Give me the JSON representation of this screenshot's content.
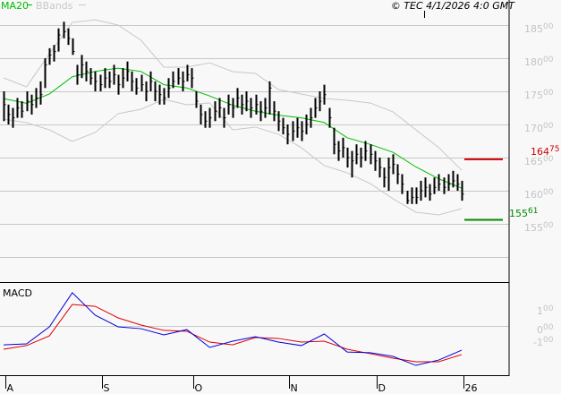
{
  "legend": {
    "ma20": "MA20",
    "bbands": "BBands"
  },
  "copyright": "© TEC 4/1/2026 4:0 GMT",
  "macd_label": "MACD",
  "colors": {
    "bars": "#000000",
    "ma20": "#00bb00",
    "bbands": "#c8c8c8",
    "macd": "#0000dd",
    "signal": "#dd0000",
    "resistance": "#cc0000",
    "support": "#008800",
    "grid": "#c8c8c8",
    "axis_label": "#c4c4c4"
  },
  "chart_data": [
    {
      "type": "ohlc",
      "ylim": [
        15000,
        18700
      ],
      "grid": true,
      "y_ticks": [
        {
          "v": 18500,
          "main": "185",
          "sup": "00"
        },
        {
          "v": 18000,
          "main": "180",
          "sup": "00"
        },
        {
          "v": 17500,
          "main": "175",
          "sup": "00"
        },
        {
          "v": 17000,
          "main": "170",
          "sup": "00"
        },
        {
          "v": 16500,
          "main": "165",
          "sup": "00"
        },
        {
          "v": 16000,
          "main": "160",
          "sup": "00"
        },
        {
          "v": 15500,
          "main": "155",
          "sup": "00"
        }
      ],
      "x_ticks": [
        {
          "bar": 0,
          "label": "A"
        },
        {
          "bar": 21,
          "label": "S"
        },
        {
          "bar": 41,
          "label": "O"
        },
        {
          "bar": 62,
          "label": "N"
        },
        {
          "bar": 81,
          "label": "D"
        },
        {
          "bar": 100,
          "label": "26"
        }
      ],
      "bars_hlc": [
        [
          17500,
          17050,
          17300
        ],
        [
          17300,
          17000,
          17150
        ],
        [
          17250,
          16950,
          17100
        ],
        [
          17400,
          17100,
          17250
        ],
        [
          17350,
          17100,
          17200
        ],
        [
          17500,
          17200,
          17350
        ],
        [
          17450,
          17150,
          17300
        ],
        [
          17550,
          17250,
          17400
        ],
        [
          17650,
          17300,
          17450
        ],
        [
          18000,
          17550,
          17900
        ],
        [
          18150,
          17900,
          18050
        ],
        [
          18200,
          17950,
          18100
        ],
        [
          18450,
          18100,
          18350
        ],
        [
          18550,
          18300,
          18400
        ],
        [
          18450,
          18200,
          18300
        ],
        [
          18300,
          18050,
          18100
        ],
        [
          17900,
          17600,
          17750
        ],
        [
          18050,
          17700,
          17900
        ],
        [
          17950,
          17650,
          17800
        ],
        [
          17850,
          17600,
          17700
        ],
        [
          17800,
          17500,
          17650
        ],
        [
          17750,
          17500,
          17600
        ],
        [
          17850,
          17550,
          17700
        ],
        [
          17800,
          17550,
          17650
        ],
        [
          17900,
          17600,
          17750
        ],
        [
          17750,
          17450,
          17600
        ],
        [
          17850,
          17550,
          17700
        ],
        [
          17950,
          17650,
          17800
        ],
        [
          17800,
          17500,
          17650
        ],
        [
          17700,
          17450,
          17550
        ],
        [
          17750,
          17500,
          17600
        ],
        [
          17650,
          17350,
          17500
        ],
        [
          17800,
          17500,
          17650
        ],
        [
          17650,
          17350,
          17500
        ],
        [
          17600,
          17300,
          17450
        ],
        [
          17550,
          17300,
          17400
        ],
        [
          17700,
          17400,
          17550
        ],
        [
          17800,
          17550,
          17650
        ],
        [
          17850,
          17600,
          17700
        ],
        [
          17800,
          17500,
          17650
        ],
        [
          17900,
          17650,
          17750
        ],
        [
          17850,
          17550,
          17700
        ],
        [
          17500,
          17250,
          17350
        ],
        [
          17300,
          17000,
          17150
        ],
        [
          17200,
          16950,
          17050
        ],
        [
          17250,
          16950,
          17100
        ],
        [
          17350,
          17050,
          17200
        ],
        [
          17400,
          17100,
          17250
        ],
        [
          17250,
          16950,
          17100
        ],
        [
          17450,
          17150,
          17300
        ],
        [
          17400,
          17100,
          17250
        ],
        [
          17550,
          17250,
          17400
        ],
        [
          17450,
          17150,
          17300
        ],
        [
          17500,
          17200,
          17350
        ],
        [
          17400,
          17100,
          17250
        ],
        [
          17450,
          17150,
          17300
        ],
        [
          17350,
          17050,
          17200
        ],
        [
          17400,
          17100,
          17250
        ],
        [
          17650,
          17150,
          17550
        ],
        [
          17350,
          17050,
          17200
        ],
        [
          17200,
          16900,
          17050
        ],
        [
          17100,
          16850,
          16950
        ],
        [
          17000,
          16700,
          16850
        ],
        [
          17050,
          16750,
          16900
        ],
        [
          17100,
          16800,
          16950
        ],
        [
          17050,
          16750,
          16900
        ],
        [
          17150,
          16850,
          17000
        ],
        [
          17250,
          16950,
          17100
        ],
        [
          17400,
          17100,
          17250
        ],
        [
          17500,
          17200,
          17350
        ],
        [
          17600,
          17300,
          17450
        ],
        [
          17250,
          16950,
          17100
        ],
        [
          16950,
          16550,
          16700
        ],
        [
          16750,
          16450,
          16600
        ],
        [
          16800,
          16500,
          16650
        ],
        [
          16650,
          16350,
          16500
        ],
        [
          16600,
          16200,
          16450
        ],
        [
          16700,
          16400,
          16550
        ],
        [
          16650,
          16350,
          16500
        ],
        [
          16750,
          16450,
          16600
        ],
        [
          16700,
          16400,
          16550
        ],
        [
          16600,
          16300,
          16450
        ],
        [
          16500,
          16200,
          16350
        ],
        [
          16350,
          16050,
          16200
        ],
        [
          16500,
          16000,
          16350
        ],
        [
          16550,
          16250,
          16400
        ],
        [
          16400,
          16100,
          16250
        ],
        [
          16250,
          15950,
          16100
        ],
        [
          16000,
          15800,
          15850
        ],
        [
          16050,
          15800,
          15900
        ],
        [
          16050,
          15800,
          15900
        ],
        [
          16150,
          15850,
          16000
        ],
        [
          16200,
          15900,
          16050
        ],
        [
          16100,
          15850,
          15950
        ],
        [
          16200,
          15950,
          16050
        ],
        [
          16250,
          16000,
          16100
        ],
        [
          16200,
          15950,
          16050
        ],
        [
          16250,
          16000,
          16100
        ],
        [
          16300,
          16050,
          16150
        ],
        [
          16250,
          16000,
          16100
        ],
        [
          16150,
          15850,
          15950
        ]
      ],
      "ma20_every5": [
        17390,
        17320,
        17460,
        17720,
        17800,
        17850,
        17800,
        17600,
        17550,
        17430,
        17290,
        17200,
        17140,
        17100,
        17030,
        16800,
        16700,
        16580,
        16360,
        16180,
        16040
      ],
      "bband_upper_every5": [
        17703,
        17568,
        18068,
        18540,
        18580,
        18500,
        18270,
        17865,
        17865,
        17930,
        17797,
        17770,
        17527,
        17460,
        17392,
        17365,
        17325,
        17190,
        16920,
        16650,
        16310
      ],
      "bband_lower_every5": [
        17081,
        17027,
        16919,
        16744,
        16879,
        17162,
        17230,
        17379,
        17297,
        17325,
        16919,
        16960,
        16852,
        16649,
        16379,
        16271,
        16109,
        15879,
        15676,
        15636,
        15730
      ],
      "levels": [
        {
          "name": "resistance",
          "value": 16475,
          "main": "164",
          "sup": "75"
        },
        {
          "name": "support",
          "value": 15561,
          "main": "155",
          "sup": "61"
        }
      ]
    },
    {
      "type": "line",
      "title": "MACD",
      "ylim": [
        -320,
        280
      ],
      "y_ticks": [
        {
          "v": 100,
          "main": "1",
          "sup": "00"
        },
        {
          "v": 0,
          "main": "0",
          "sup": "00"
        },
        {
          "v": -100,
          "main": "-1",
          "sup": "00"
        }
      ],
      "macd_every5": [
        -124,
        -118,
        -6,
        218,
        71,
        -6,
        -18,
        -59,
        -24,
        -141,
        -100,
        -71,
        -106,
        -129,
        -53,
        -171,
        -176,
        -200,
        -259,
        -224,
        -159
      ],
      "signal_every5": [
        -153,
        -129,
        -65,
        141,
        129,
        53,
        6,
        -29,
        -35,
        -106,
        -124,
        -76,
        -82,
        -106,
        -100,
        -153,
        -182,
        -212,
        -235,
        -235,
        -188
      ]
    }
  ]
}
